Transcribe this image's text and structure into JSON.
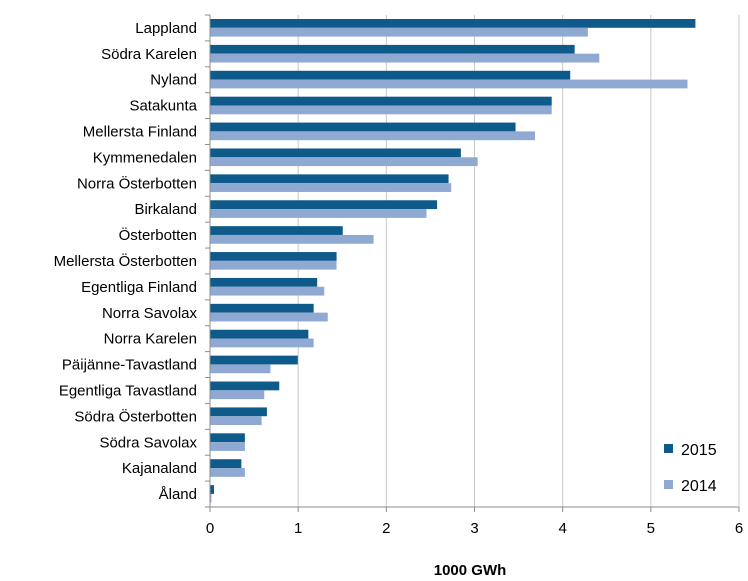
{
  "chart_data": {
    "type": "bar",
    "orientation": "horizontal",
    "categories": [
      "Lappland",
      "Södra Karelen",
      "Nyland",
      "Satakunta",
      "Mellersta Finland",
      "Kymmenedalen",
      "Norra Österbotten",
      "Birkaland",
      "Österbotten",
      "Mellersta Österbotten",
      "Egentliga Finland",
      "Norra Savolax",
      "Norra Karelen",
      "Päijänne-Tavastland",
      "Egentliga Tavastland",
      "Södra Österbotten",
      "Södra Savolax",
      "Kajanaland",
      "Åland"
    ],
    "series": [
      {
        "name": "2015",
        "color": "#0e5a8a",
        "values": [
          5.5,
          4.13,
          4.08,
          3.87,
          3.46,
          2.84,
          2.7,
          2.57,
          1.5,
          1.43,
          1.21,
          1.17,
          1.11,
          0.99,
          0.78,
          0.64,
          0.39,
          0.35,
          0.04
        ]
      },
      {
        "name": "2014",
        "color": "#8fa9d2",
        "values": [
          4.28,
          4.41,
          5.41,
          3.87,
          3.68,
          3.03,
          2.73,
          2.45,
          1.85,
          1.43,
          1.29,
          1.33,
          1.17,
          0.68,
          0.61,
          0.58,
          0.39,
          0.39,
          0.01
        ]
      }
    ],
    "xlabel": "1000 GWh",
    "ylabel": "",
    "xlim": [
      0,
      6
    ],
    "xticks": [
      0,
      1,
      2,
      3,
      4,
      5,
      6
    ],
    "grid": "vertical",
    "legend": "bottom-right"
  }
}
